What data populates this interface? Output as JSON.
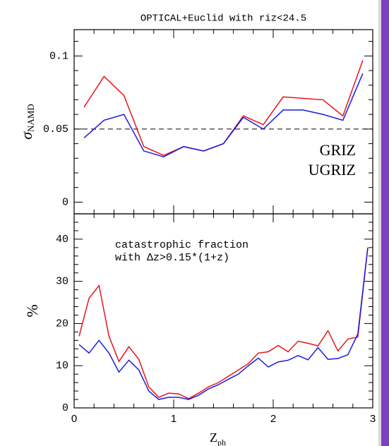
{
  "chart_data": [
    {
      "type": "line",
      "title": "OPTICAL+Euclid with riz<24.5",
      "ylabel": "σ",
      "ylabel_sub": "NAMD",
      "x": [
        0.1,
        0.3,
        0.5,
        0.7,
        0.9,
        1.1,
        1.3,
        1.5,
        1.7,
        1.9,
        2.1,
        2.3,
        2.5,
        2.7,
        2.9
      ],
      "series": [
        {
          "name": "GRIZ",
          "color": "#e8141c",
          "values": [
            0.065,
            0.086,
            0.073,
            0.038,
            0.032,
            0.038,
            0.035,
            0.04,
            0.059,
            0.053,
            0.072,
            0.071,
            0.07,
            0.059,
            0.097
          ]
        },
        {
          "name": "UGRIZ",
          "color": "#1a1ae0",
          "values": [
            0.044,
            0.056,
            0.06,
            0.035,
            0.031,
            0.038,
            0.035,
            0.04,
            0.058,
            0.05,
            0.063,
            0.063,
            0.06,
            0.056,
            0.088
          ]
        }
      ],
      "xlim": [
        0,
        3
      ],
      "xticks": [
        0,
        1,
        2,
        3
      ],
      "xminorticks": [
        0.2,
        0.4,
        0.6,
        0.8,
        1.2,
        1.4,
        1.6,
        1.8,
        2.2,
        2.4,
        2.6,
        2.8
      ],
      "ylim": [
        -0.008,
        0.118
      ],
      "yticks": [
        0,
        0.05,
        0.1
      ],
      "yminorticks": [
        0.01,
        0.02,
        0.03,
        0.04,
        0.06,
        0.07,
        0.08,
        0.09,
        0.11
      ],
      "hline": 0.05,
      "legend": "lower right"
    },
    {
      "type": "line",
      "ylabel": "%",
      "xlabel": "Z",
      "xlabel_sub": "ph",
      "annotation": [
        "catastrophic fraction",
        "with Δz>0.15*(1+z)"
      ],
      "x": [
        0.05,
        0.15,
        0.25,
        0.35,
        0.45,
        0.55,
        0.65,
        0.75,
        0.85,
        0.95,
        1.05,
        1.15,
        1.25,
        1.35,
        1.45,
        1.55,
        1.65,
        1.75,
        1.85,
        1.95,
        2.05,
        2.15,
        2.25,
        2.35,
        2.45,
        2.55,
        2.65,
        2.75,
        2.85,
        2.95
      ],
      "series": [
        {
          "name": "GRIZ",
          "color": "#e8141c",
          "values": [
            17,
            26,
            29,
            17,
            11,
            14.5,
            11.5,
            5,
            2.5,
            3.5,
            3.3,
            2.2,
            3.5,
            5,
            6,
            7.5,
            9,
            10.5,
            13,
            13.3,
            14.8,
            13.3,
            15.8,
            15.3,
            14.7,
            18.3,
            13.5,
            16.3,
            16.8,
            38
          ]
        },
        {
          "name": "UGRIZ",
          "color": "#1a1ae0",
          "values": [
            15,
            13,
            16,
            13,
            8.5,
            11.3,
            9,
            4,
            2,
            2.5,
            2.5,
            2,
            3,
            4.5,
            5.5,
            6.8,
            8,
            10,
            11.8,
            9.7,
            10.9,
            11.3,
            12.4,
            11.4,
            14.3,
            11.5,
            11.7,
            12.6,
            17.5,
            38
          ]
        }
      ],
      "xlim": [
        0,
        3
      ],
      "xticks": [
        0,
        1,
        2,
        3
      ],
      "xminorticks": [
        0.2,
        0.4,
        0.6,
        0.8,
        1.2,
        1.4,
        1.6,
        1.8,
        2.2,
        2.4,
        2.6,
        2.8
      ],
      "ylim": [
        0,
        46
      ],
      "yticks": [
        0,
        10,
        20,
        30,
        40
      ],
      "yminorticks": [
        2,
        4,
        6,
        8,
        12,
        14,
        16,
        18,
        22,
        24,
        26,
        28,
        32,
        34,
        36,
        38,
        42,
        44
      ]
    }
  ]
}
